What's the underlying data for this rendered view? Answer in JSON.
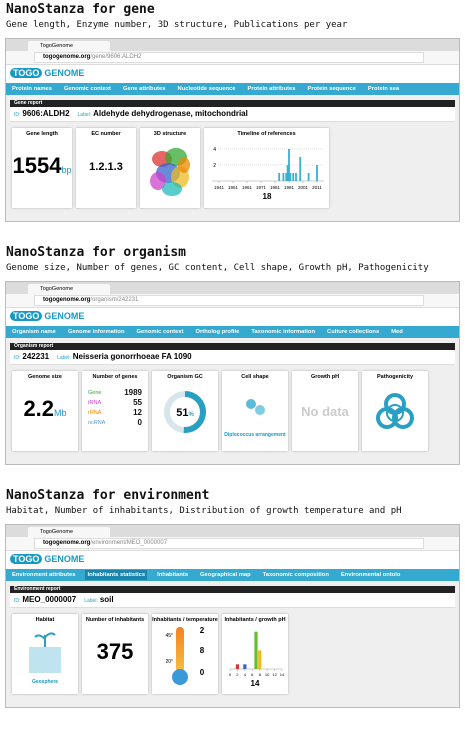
{
  "logo": {
    "togo": "TOGO",
    "genome": "GENOME"
  },
  "sections": [
    {
      "heading": "NanoStanza for gene",
      "subtitle": "Gene length, Enzyme number, 3D structure, Publications per year",
      "tab": "TogoGenome",
      "url_host": "togogenome.org",
      "url_path": "/gene/9606:ALDH2",
      "nav": [
        "Protein names",
        "Genomic context",
        "Gene attributes",
        "Nucleotide sequence",
        "Protein attributes",
        "Protein sequence",
        "Protein sea"
      ],
      "report": "Gene report",
      "id_label": "ID:",
      "id": "9606:ALDH2",
      "label_label": "Label:",
      "label": "Aldehyde dehydrogenase, mitochondrial",
      "panels": [
        {
          "type": "big",
          "title": "Gene length",
          "value": 1554,
          "unit": "bp"
        },
        {
          "type": "ec",
          "title": "EC number",
          "value": "1.2.1.3"
        },
        {
          "type": "structure",
          "title": "3D structure"
        },
        {
          "type": "timeline",
          "title": "Timeline of references",
          "x": [
            1984,
            1987,
            1989,
            1990,
            1991,
            1992,
            1994,
            1996,
            1999,
            2005,
            2011
          ],
          "values": [
            1,
            1,
            1,
            2,
            4,
            1,
            1,
            1,
            3,
            1,
            2
          ],
          "color": "#3ab0d0",
          "xlim": [
            1936,
            2016
          ],
          "xticks": [
            1941,
            1951,
            1961,
            1971,
            1981,
            1991,
            2001,
            2011
          ],
          "ylim": [
            0,
            5
          ],
          "yticks": [
            2,
            4
          ],
          "total": 18
        }
      ]
    },
    {
      "heading": "NanoStanza for organism",
      "subtitle": "Genome size, Number of genes, GC content, Cell shape, Growth pH, Pathogenicity",
      "tab": "TogoGenome",
      "url_host": "togogenome.org",
      "url_path": "/organism/242231",
      "nav": [
        "Organism name",
        "Genome information",
        "Genomic context",
        "Ortholog profile",
        "Taxonomic information",
        "Culture collections",
        "Med"
      ],
      "report": "Organism report",
      "id_label": "ID:",
      "id": "242231",
      "label_label": "Label:",
      "label": "Neisseria gonorrhoeae FA 1090",
      "panels": [
        {
          "type": "big",
          "title": "Genome size",
          "value": 2.2,
          "unit": "Mb"
        },
        {
          "type": "genes",
          "title": "Number of genes",
          "rows": [
            {
              "name": "Gene",
              "value": 1989,
              "color": "#3a3"
            },
            {
              "name": "tRNA",
              "value": 55,
              "color": "#c4c"
            },
            {
              "name": "rRNA",
              "value": 12,
              "color": "#e80"
            },
            {
              "name": "ncRNA",
              "value": 0,
              "color": "#59c"
            }
          ]
        },
        {
          "type": "gc",
          "title": "Organism GC",
          "value": 51,
          "unit": "%",
          "color": "#2a9fc4"
        },
        {
          "type": "cell",
          "title": "Cell shape",
          "caption": "Diplococcus arrangement"
        },
        {
          "type": "nodata",
          "title": "Growth pH",
          "text": "No data"
        },
        {
          "type": "biohazard",
          "title": "Pathogenicity"
        }
      ]
    },
    {
      "heading": "NanoStanza for environment",
      "subtitle": "Habitat, Number of inhabitants, Distribution of growth temperature and pH",
      "tab": "TogoGenome",
      "url_host": "togogenome.org",
      "url_path": "/environment/MEO_0000007",
      "nav": [
        "Environment attributes",
        "Inhabitants statistics",
        "Inhabitants",
        "Geographical map",
        "Taxonomic composition",
        "Environmental ontolo"
      ],
      "active_nav": 1,
      "report": "Environment report",
      "id_label": "ID:",
      "id": "MEO_0000007",
      "label_label": "Label:",
      "label": "soil",
      "panels": [
        {
          "type": "habitat",
          "title": "Habitat",
          "caption": "Geosphere"
        },
        {
          "type": "count",
          "title": "Number of inhabitants",
          "value": 375
        },
        {
          "type": "temp",
          "title": "Inhabitants / temperature",
          "marks": [
            "45°",
            "20°"
          ],
          "counts": [
            2,
            8,
            0
          ]
        },
        {
          "type": "ph",
          "title": "Inhabitants / growth pH",
          "x": [
            2,
            4,
            7,
            8
          ],
          "values": [
            1,
            1,
            8,
            4
          ],
          "colors": [
            "#d33",
            "#36c",
            "#6b3",
            "#eb2"
          ],
          "xlim": [
            0,
            14
          ],
          "xticks": [
            0,
            2,
            4,
            6,
            8,
            10,
            12,
            14
          ],
          "ylim": [
            0,
            9
          ],
          "total": 14
        }
      ]
    }
  ]
}
